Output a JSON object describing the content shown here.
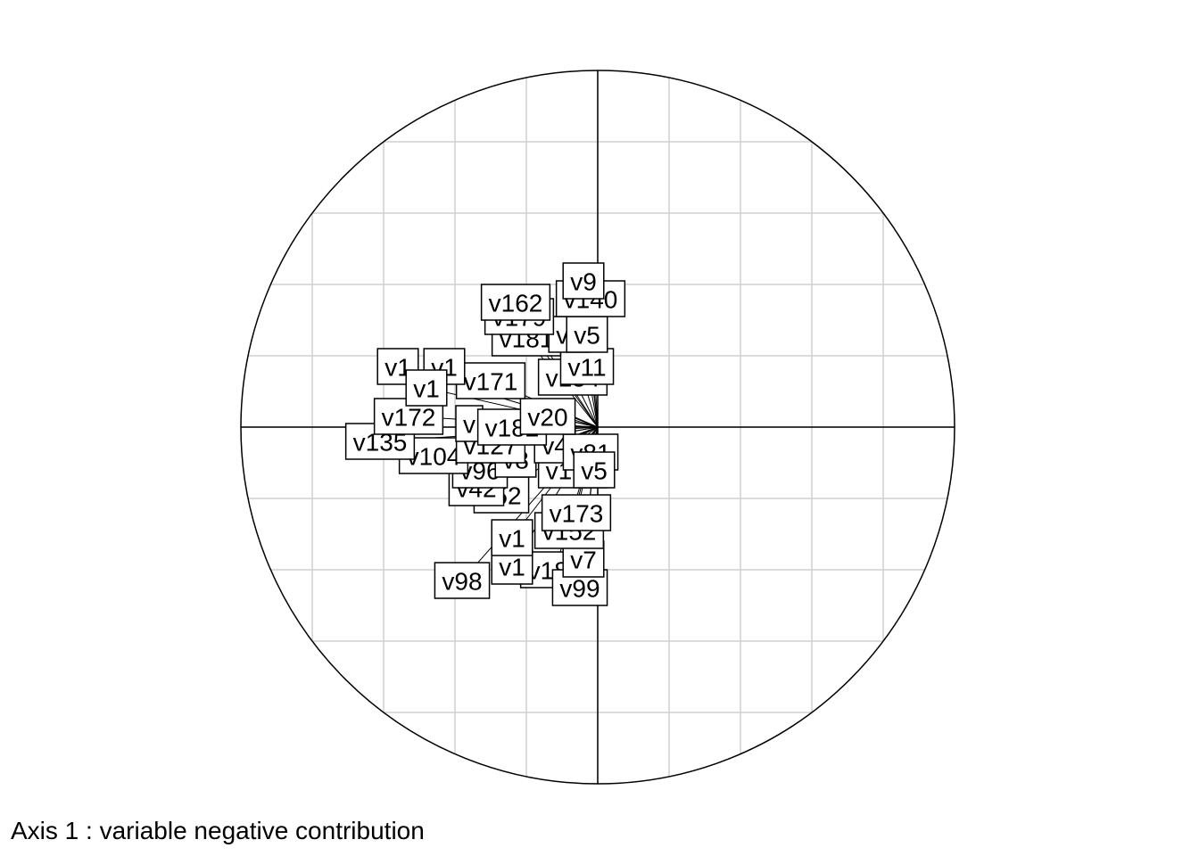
{
  "caption": "Axis 1 : variable negative contribution",
  "chart_data": {
    "type": "scatter",
    "subtype": "correlation-circle",
    "title": "",
    "xlabel": "",
    "ylabel": "",
    "xlim": [
      -1,
      1
    ],
    "ylim": [
      -1,
      1
    ],
    "grid": true,
    "grid_step": 0.2,
    "arrows": true,
    "colors": {
      "grid": "#d0d0d0",
      "axes": "#000000",
      "circle": "#000000",
      "label_border": "#000000",
      "label_fill": "#ffffff"
    },
    "points": [
      {
        "name": "v98",
        "x": -0.38,
        "y": -0.43
      },
      {
        "name": "v188",
        "x": -0.12,
        "y": -0.4
      },
      {
        "name": "v1",
        "x": -0.24,
        "y": -0.39
      },
      {
        "name": "v99",
        "x": -0.05,
        "y": -0.45
      },
      {
        "name": "v7",
        "x": -0.04,
        "y": -0.37
      },
      {
        "name": "v1",
        "x": -0.24,
        "y": -0.31
      },
      {
        "name": "v152",
        "x": -0.08,
        "y": -0.29
      },
      {
        "name": "v173",
        "x": -0.06,
        "y": -0.24
      },
      {
        "name": "v157",
        "x": -0.07,
        "y": -0.12
      },
      {
        "name": "v52",
        "x": -0.27,
        "y": -0.19
      },
      {
        "name": "v42",
        "x": -0.34,
        "y": -0.17
      },
      {
        "name": "v96",
        "x": -0.33,
        "y": -0.12
      },
      {
        "name": "v8",
        "x": -0.23,
        "y": -0.09
      },
      {
        "name": "v104",
        "x": -0.46,
        "y": -0.08
      },
      {
        "name": "v135",
        "x": -0.61,
        "y": -0.04
      },
      {
        "name": "v127",
        "x": -0.3,
        "y": -0.05
      },
      {
        "name": "v4",
        "x": -0.12,
        "y": -0.05
      },
      {
        "name": "v81",
        "x": -0.02,
        "y": -0.07
      },
      {
        "name": "v5",
        "x": -0.01,
        "y": -0.12
      },
      {
        "name": "v172",
        "x": -0.53,
        "y": 0.03
      },
      {
        "name": "v",
        "x": -0.36,
        "y": 0.01
      },
      {
        "name": "v182",
        "x": -0.24,
        "y": 0.0
      },
      {
        "name": "v20",
        "x": -0.14,
        "y": 0.03
      },
      {
        "name": "v171",
        "x": -0.3,
        "y": 0.13
      },
      {
        "name": "v1",
        "x": -0.43,
        "y": 0.17
      },
      {
        "name": "v1",
        "x": -0.56,
        "y": 0.17
      },
      {
        "name": "v1",
        "x": -0.48,
        "y": 0.11
      },
      {
        "name": "v154",
        "x": -0.07,
        "y": 0.14
      },
      {
        "name": "v11",
        "x": -0.03,
        "y": 0.17
      },
      {
        "name": "v181",
        "x": -0.2,
        "y": 0.25
      },
      {
        "name": "v3",
        "x": -0.08,
        "y": 0.26
      },
      {
        "name": "v5",
        "x": -0.03,
        "y": 0.26
      },
      {
        "name": "v179",
        "x": -0.22,
        "y": 0.31
      },
      {
        "name": "v162",
        "x": -0.23,
        "y": 0.35
      },
      {
        "name": "v140",
        "x": -0.02,
        "y": 0.36
      },
      {
        "name": "v9",
        "x": -0.04,
        "y": 0.41
      }
    ]
  }
}
